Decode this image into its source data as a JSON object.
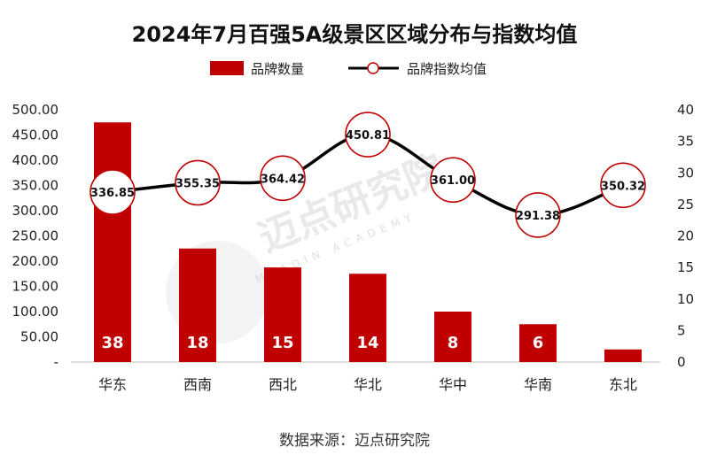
{
  "chart_data": {
    "type": "bar+line",
    "title": "2024年7月百强5A级景区区域分布与指数均值",
    "categories": [
      "华东",
      "西南",
      "西北",
      "华北",
      "华中",
      "华南",
      "东北"
    ],
    "series": [
      {
        "name": "品牌数量",
        "type": "bar",
        "axis": "right",
        "values": [
          38,
          18,
          15,
          14,
          8,
          6,
          2
        ],
        "color": "#c00000"
      },
      {
        "name": "品牌指数均值",
        "type": "line",
        "axis": "left",
        "values": [
          336.85,
          355.35,
          364.42,
          450.81,
          361.0,
          291.38,
          350.32
        ],
        "value_labels": [
          "336.85",
          "355.35",
          "364.42",
          "450.81",
          "361.00",
          "291.38",
          "350.32"
        ],
        "color": "#000000",
        "marker_color": "#c00000"
      }
    ],
    "y_left": {
      "min": 0,
      "max": 500,
      "ticks": [
        "-",
        "50.00",
        "100.00",
        "150.00",
        "200.00",
        "250.00",
        "300.00",
        "350.00",
        "400.00",
        "450.00",
        "500.00"
      ]
    },
    "y_right": {
      "min": 0,
      "max": 40,
      "ticks": [
        "0",
        "5",
        "10",
        "15",
        "20",
        "25",
        "30",
        "35",
        "40"
      ]
    },
    "legend": [
      "品牌数量",
      "品牌指数均值"
    ],
    "legend_position": "top",
    "grid": false
  },
  "watermark": {
    "text": "迈点研究院",
    "subtext": "MEADIN ACADEMY"
  },
  "source": "数据来源：迈点研究院"
}
